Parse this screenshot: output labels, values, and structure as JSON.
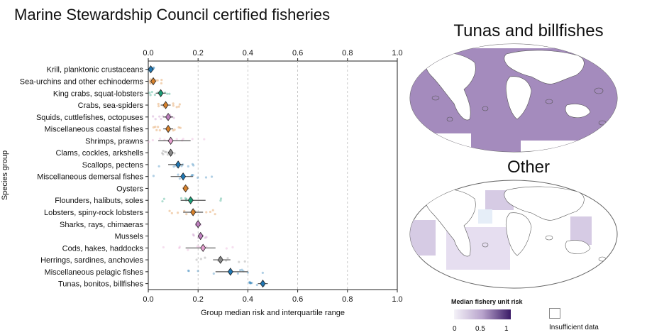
{
  "title": "Marine Stewardship Council certified fisheries",
  "chart_data": {
    "type": "scatter",
    "xlabel": "Group median risk and interquartile range",
    "ylabel": "Species group",
    "xlim": [
      0.0,
      1.0
    ],
    "xticks": [
      "0.0",
      "0.2",
      "0.4",
      "0.6",
      "0.8",
      "1.0"
    ],
    "grid": "vertical dashed",
    "categories": [
      "Krill, planktonic crustaceans",
      "Sea-urchins and other echinoderms",
      "King crabs, squat-lobsters",
      "Crabs, sea-spiders",
      "Squids, cuttlefishes, octopuses",
      "Miscellaneous coastal fishes",
      "Shrimps, prawns",
      "Clams, cockles, arkshells",
      "Scallops, pectens",
      "Miscellaneous demersal fishes",
      "Oysters",
      "Flounders, halibuts, soles",
      "Lobsters, spiny-rock lobsters",
      "Sharks, rays, chimaeras",
      "Mussels",
      "Cods, hakes, haddocks",
      "Herrings, sardines, anchovies",
      "Miscellaneous pelagic fishes",
      "Tunas, bonitos, billfishes"
    ],
    "medians": [
      0.01,
      0.02,
      0.05,
      0.07,
      0.08,
      0.08,
      0.09,
      0.09,
      0.12,
      0.14,
      0.15,
      0.17,
      0.18,
      0.2,
      0.21,
      0.22,
      0.29,
      0.33,
      0.46
    ],
    "iqr_low": [
      0.005,
      0.01,
      0.03,
      0.05,
      0.06,
      0.06,
      0.04,
      0.08,
      0.08,
      0.09,
      0.15,
      0.13,
      0.14,
      0.2,
      0.2,
      0.15,
      0.26,
      0.27,
      0.44
    ],
    "iqr_high": [
      0.015,
      0.03,
      0.07,
      0.09,
      0.1,
      0.1,
      0.17,
      0.1,
      0.14,
      0.18,
      0.15,
      0.23,
      0.22,
      0.2,
      0.22,
      0.27,
      0.33,
      0.4,
      0.48
    ],
    "colors": [
      "#1f77b4",
      "#d9822b",
      "#1a9e77",
      "#d9822b",
      "#c080c0",
      "#d9822b",
      "#e6a0d0",
      "#888888",
      "#1f77b4",
      "#1f77b4",
      "#d9822b",
      "#1a9e77",
      "#d9822b",
      "#c080c0",
      "#c080c0",
      "#e6a0d0",
      "#888888",
      "#1f77b4",
      "#1f77b4"
    ]
  },
  "maps": {
    "top_title": "Tunas and billfishes",
    "bottom_title": "Other",
    "legend_title": "Median fishery unit risk",
    "colorbar_ticks": [
      "0",
      "0.5",
      "1"
    ],
    "insufficient_label": "Insufficient data",
    "colors": {
      "low": "#f4f2f8",
      "mid": "#b8a3cc",
      "high": "#3a1a66",
      "fill_top": "#a48bbd",
      "fill_bottom": "#d6cbe4"
    }
  }
}
